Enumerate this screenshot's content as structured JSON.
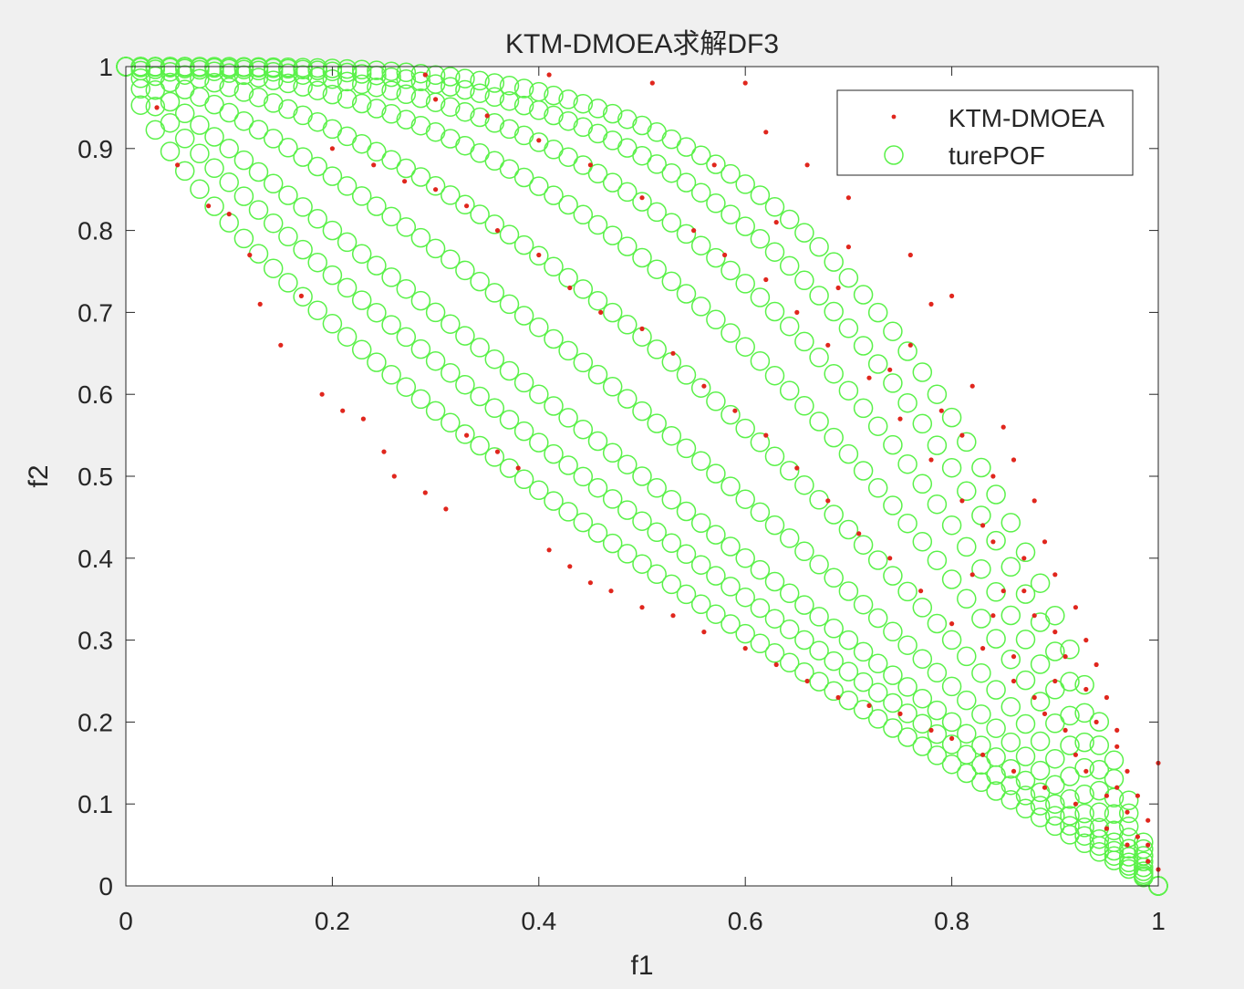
{
  "chart_data": {
    "type": "scatter",
    "title": "KTM-DMOEA求解DF3",
    "xlabel": "f1",
    "ylabel": "f2",
    "xlim": [
      0,
      1
    ],
    "ylim": [
      0,
      1
    ],
    "xticks": [
      "0",
      "0.2",
      "0.4",
      "0.6",
      "0.8",
      "1"
    ],
    "yticks": [
      "0",
      "0.1",
      "0.2",
      "0.3",
      "0.4",
      "0.5",
      "0.6",
      "0.7",
      "0.8",
      "0.9",
      "1"
    ],
    "grid": false,
    "legend_position": "top-right",
    "series": [
      {
        "name": "KTM-DMOEA",
        "marker": "dot",
        "color": "#e0261d",
        "note": "Approximate sample of obtained solutions near the fronts",
        "points": [
          [
            0.03,
            0.95
          ],
          [
            0.05,
            0.88
          ],
          [
            0.08,
            0.83
          ],
          [
            0.1,
            0.82
          ],
          [
            0.12,
            0.77
          ],
          [
            0.13,
            0.71
          ],
          [
            0.15,
            0.66
          ],
          [
            0.17,
            0.72
          ],
          [
            0.19,
            0.6
          ],
          [
            0.21,
            0.58
          ],
          [
            0.23,
            0.57
          ],
          [
            0.25,
            0.53
          ],
          [
            0.26,
            0.5
          ],
          [
            0.29,
            0.48
          ],
          [
            0.31,
            0.46
          ],
          [
            0.33,
            0.55
          ],
          [
            0.36,
            0.53
          ],
          [
            0.38,
            0.51
          ],
          [
            0.41,
            0.41
          ],
          [
            0.43,
            0.39
          ],
          [
            0.45,
            0.37
          ],
          [
            0.47,
            0.36
          ],
          [
            0.5,
            0.34
          ],
          [
            0.53,
            0.33
          ],
          [
            0.56,
            0.31
          ],
          [
            0.6,
            0.29
          ],
          [
            0.63,
            0.27
          ],
          [
            0.66,
            0.25
          ],
          [
            0.69,
            0.23
          ],
          [
            0.72,
            0.22
          ],
          [
            0.75,
            0.21
          ],
          [
            0.78,
            0.19
          ],
          [
            0.8,
            0.18
          ],
          [
            0.83,
            0.16
          ],
          [
            0.86,
            0.14
          ],
          [
            0.89,
            0.12
          ],
          [
            0.92,
            0.1
          ],
          [
            0.95,
            0.07
          ],
          [
            0.97,
            0.05
          ],
          [
            0.99,
            0.03
          ],
          [
            0.2,
            0.9
          ],
          [
            0.24,
            0.88
          ],
          [
            0.27,
            0.86
          ],
          [
            0.3,
            0.85
          ],
          [
            0.33,
            0.83
          ],
          [
            0.36,
            0.8
          ],
          [
            0.4,
            0.77
          ],
          [
            0.43,
            0.73
          ],
          [
            0.46,
            0.7
          ],
          [
            0.5,
            0.68
          ],
          [
            0.53,
            0.65
          ],
          [
            0.56,
            0.61
          ],
          [
            0.59,
            0.58
          ],
          [
            0.62,
            0.55
          ],
          [
            0.65,
            0.51
          ],
          [
            0.68,
            0.47
          ],
          [
            0.71,
            0.43
          ],
          [
            0.74,
            0.4
          ],
          [
            0.77,
            0.36
          ],
          [
            0.8,
            0.32
          ],
          [
            0.83,
            0.29
          ],
          [
            0.86,
            0.25
          ],
          [
            0.89,
            0.21
          ],
          [
            0.92,
            0.16
          ],
          [
            0.95,
            0.11
          ],
          [
            0.98,
            0.06
          ],
          [
            0.3,
            0.96
          ],
          [
            0.35,
            0.94
          ],
          [
            0.4,
            0.91
          ],
          [
            0.45,
            0.88
          ],
          [
            0.5,
            0.84
          ],
          [
            0.55,
            0.8
          ],
          [
            0.58,
            0.77
          ],
          [
            0.62,
            0.74
          ],
          [
            0.65,
            0.7
          ],
          [
            0.68,
            0.66
          ],
          [
            0.72,
            0.62
          ],
          [
            0.75,
            0.57
          ],
          [
            0.78,
            0.52
          ],
          [
            0.81,
            0.47
          ],
          [
            0.84,
            0.42
          ],
          [
            0.87,
            0.36
          ],
          [
            0.9,
            0.31
          ],
          [
            0.93,
            0.24
          ],
          [
            0.96,
            0.17
          ],
          [
            0.99,
            0.08
          ],
          [
            0.29,
            0.99
          ],
          [
            0.41,
            0.99
          ],
          [
            0.51,
            0.98
          ],
          [
            0.6,
            0.98
          ],
          [
            0.62,
            0.92
          ],
          [
            0.57,
            0.88
          ],
          [
            0.66,
            0.88
          ],
          [
            0.7,
            0.84
          ],
          [
            0.63,
            0.81
          ],
          [
            0.7,
            0.78
          ],
          [
            0.76,
            0.77
          ],
          [
            0.69,
            0.73
          ],
          [
            0.78,
            0.71
          ],
          [
            0.76,
            0.66
          ],
          [
            0.8,
            0.72
          ],
          [
            0.74,
            0.63
          ],
          [
            0.82,
            0.61
          ],
          [
            0.85,
            0.56
          ],
          [
            0.86,
            0.52
          ],
          [
            0.88,
            0.47
          ],
          [
            0.89,
            0.42
          ],
          [
            0.9,
            0.38
          ],
          [
            0.92,
            0.34
          ],
          [
            0.93,
            0.3
          ],
          [
            0.94,
            0.27
          ],
          [
            0.95,
            0.23
          ],
          [
            0.96,
            0.19
          ],
          [
            0.97,
            0.14
          ],
          [
            0.98,
            0.11
          ],
          [
            1.0,
            0.15
          ],
          [
            0.79,
            0.58
          ],
          [
            0.81,
            0.55
          ],
          [
            0.84,
            0.5
          ],
          [
            0.83,
            0.44
          ],
          [
            0.87,
            0.4
          ],
          [
            0.85,
            0.36
          ],
          [
            0.88,
            0.33
          ],
          [
            0.91,
            0.28
          ],
          [
            0.9,
            0.25
          ],
          [
            0.94,
            0.2
          ],
          [
            0.96,
            0.12
          ],
          [
            0.99,
            0.05
          ],
          [
            1.0,
            0.02
          ],
          [
            0.97,
            0.09
          ],
          [
            0.93,
            0.14
          ],
          [
            0.91,
            0.19
          ],
          [
            0.88,
            0.23
          ],
          [
            0.86,
            0.28
          ],
          [
            0.84,
            0.33
          ],
          [
            0.82,
            0.38
          ]
        ]
      },
      {
        "name": "turePOF",
        "marker": "circle",
        "color": "#5bf14a",
        "note": "True Pareto fronts: f2 = 1 - f1^H for a family of H values",
        "H_values": [
          0.72,
          0.85,
          1.0,
          1.25,
          1.6,
          2.1,
          2.6,
          3.2,
          3.8
        ],
        "points_per_curve": 70
      }
    ]
  }
}
